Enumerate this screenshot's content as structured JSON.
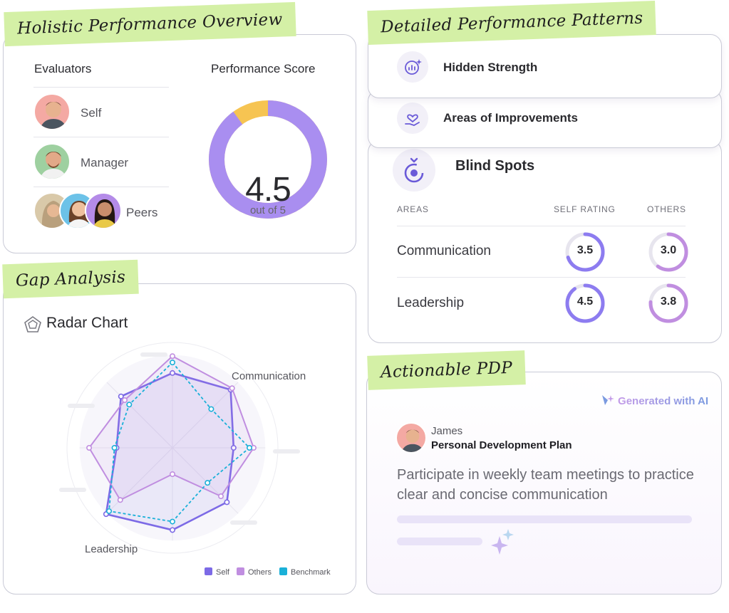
{
  "holistic": {
    "tag": "Holistic Performance Overview",
    "evaluators_title": "Evaluators",
    "score_title": "Performance Score",
    "evaluators": [
      {
        "label": "Self"
      },
      {
        "label": "Manager"
      },
      {
        "label": "Peers"
      }
    ],
    "score": {
      "value": "4.5",
      "suffix": "out of 5",
      "fraction": 0.9,
      "colors": {
        "fill": "#a98ef0",
        "rest": "#f6c452"
      }
    }
  },
  "patterns": {
    "tag": "Detailed Performance Patterns",
    "items": [
      {
        "label": "Hidden Strength",
        "icon": "chart-sparkle-icon"
      },
      {
        "label": "Areas of Improvements",
        "icon": "heart-hand-icon"
      }
    ],
    "blind_spots": {
      "title": "Blind Spots",
      "icon": "eye-target-icon",
      "headers": {
        "areas": "AREAS",
        "self": "SELF RATING",
        "others": "OTHERS"
      },
      "rows": [
        {
          "area": "Communication",
          "self": "3.5",
          "others": "3.0",
          "self_fraction": 0.7,
          "others_fraction": 0.6
        },
        {
          "area": "Leadership",
          "self": "4.5",
          "others": "3.8",
          "self_fraction": 0.9,
          "others_fraction": 0.76
        }
      ]
    }
  },
  "gap": {
    "tag": "Gap Analysis",
    "radar_title": "Radar Chart",
    "radar_icon": "pentagon-icon",
    "axis_labels": {
      "communication": "Communication",
      "leadership": "Leadership"
    },
    "legend": [
      {
        "name": "Self",
        "color": "#7c6ae6"
      },
      {
        "name": "Others",
        "color": "#c08ee0"
      },
      {
        "name": "Benchmark",
        "color": "#1ab0d8"
      }
    ]
  },
  "chart_data": {
    "type": "radar",
    "axes": [
      "",
      "Communication",
      "",
      "",
      "",
      "Leadership",
      "",
      ""
    ],
    "rlim": [
      0,
      1
    ],
    "series": [
      {
        "name": "Self",
        "values": [
          0.71,
          0.78,
          0.58,
          0.73,
          0.78,
          0.89,
          0.53,
          0.69
        ]
      },
      {
        "name": "Others",
        "values": [
          0.87,
          0.8,
          0.77,
          0.65,
          0.25,
          0.7,
          0.79,
          0.64
        ]
      },
      {
        "name": "Benchmark",
        "values": [
          0.81,
          0.52,
          0.73,
          0.47,
          0.7,
          0.85,
          0.55,
          0.58
        ]
      }
    ],
    "legend": "bottom-right"
  },
  "pdp": {
    "tag": "Actionable PDP",
    "generated": "Generated with AI",
    "name": "James",
    "plan_title": "Personal Development Plan",
    "text": "Participate in weekly team meetings to practice clear and concise communication"
  }
}
